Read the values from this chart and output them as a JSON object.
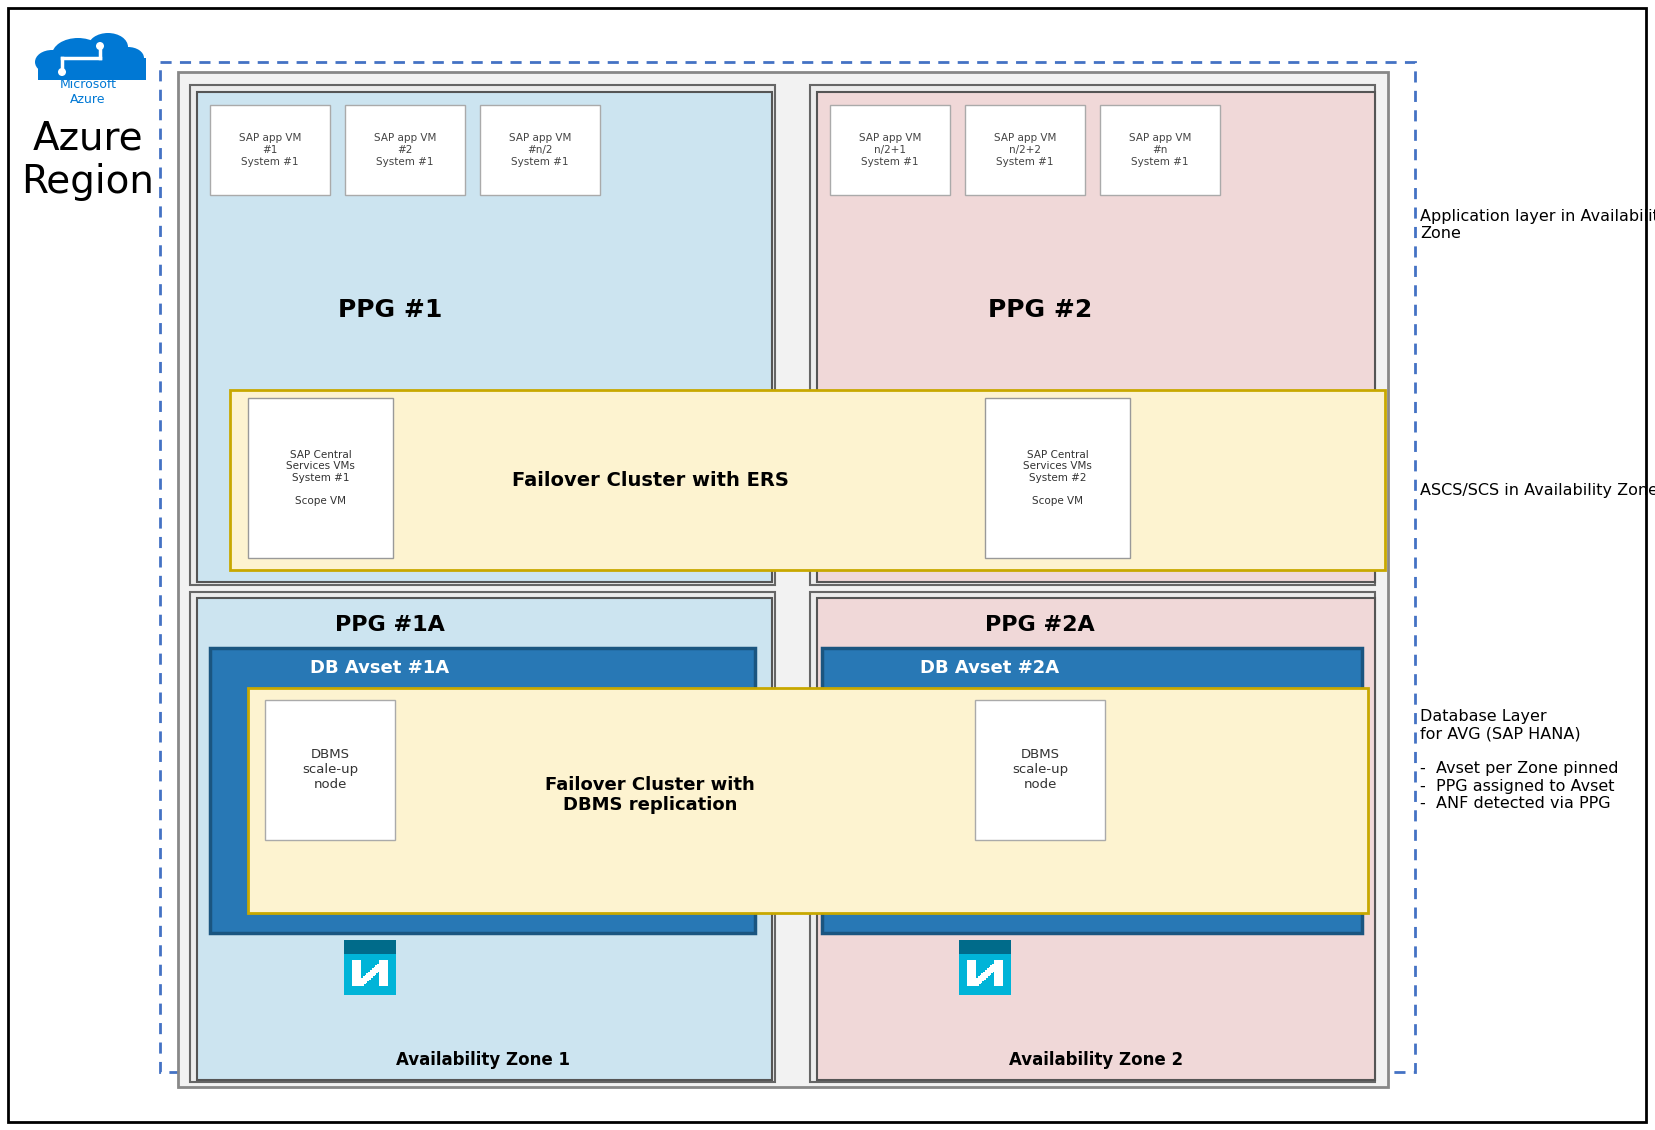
{
  "fig_width": 16.55,
  "fig_height": 11.3,
  "bg_color": "#ffffff",
  "azure_blue": "#0078D4",
  "light_blue_ppg": "#cce4f0",
  "light_pink_ppg": "#f0d8d8",
  "dark_blue_avset": "#2471a3",
  "light_yellow": "#fdf3d0",
  "yellow_border": "#c8a800",
  "dashed_border_color": "#4472C4",
  "gray_outer": "#e8e8e8",
  "right_label1": "Application layer in Availability\nZone",
  "right_label2": "ASCS/SCS in Availability Zone",
  "right_label3": "Database Layer\nfor AVG (SAP HANA)\n\n-  Avset per Zone pinned\n-  PPG assigned to Avset\n-  ANF detected via PPG"
}
